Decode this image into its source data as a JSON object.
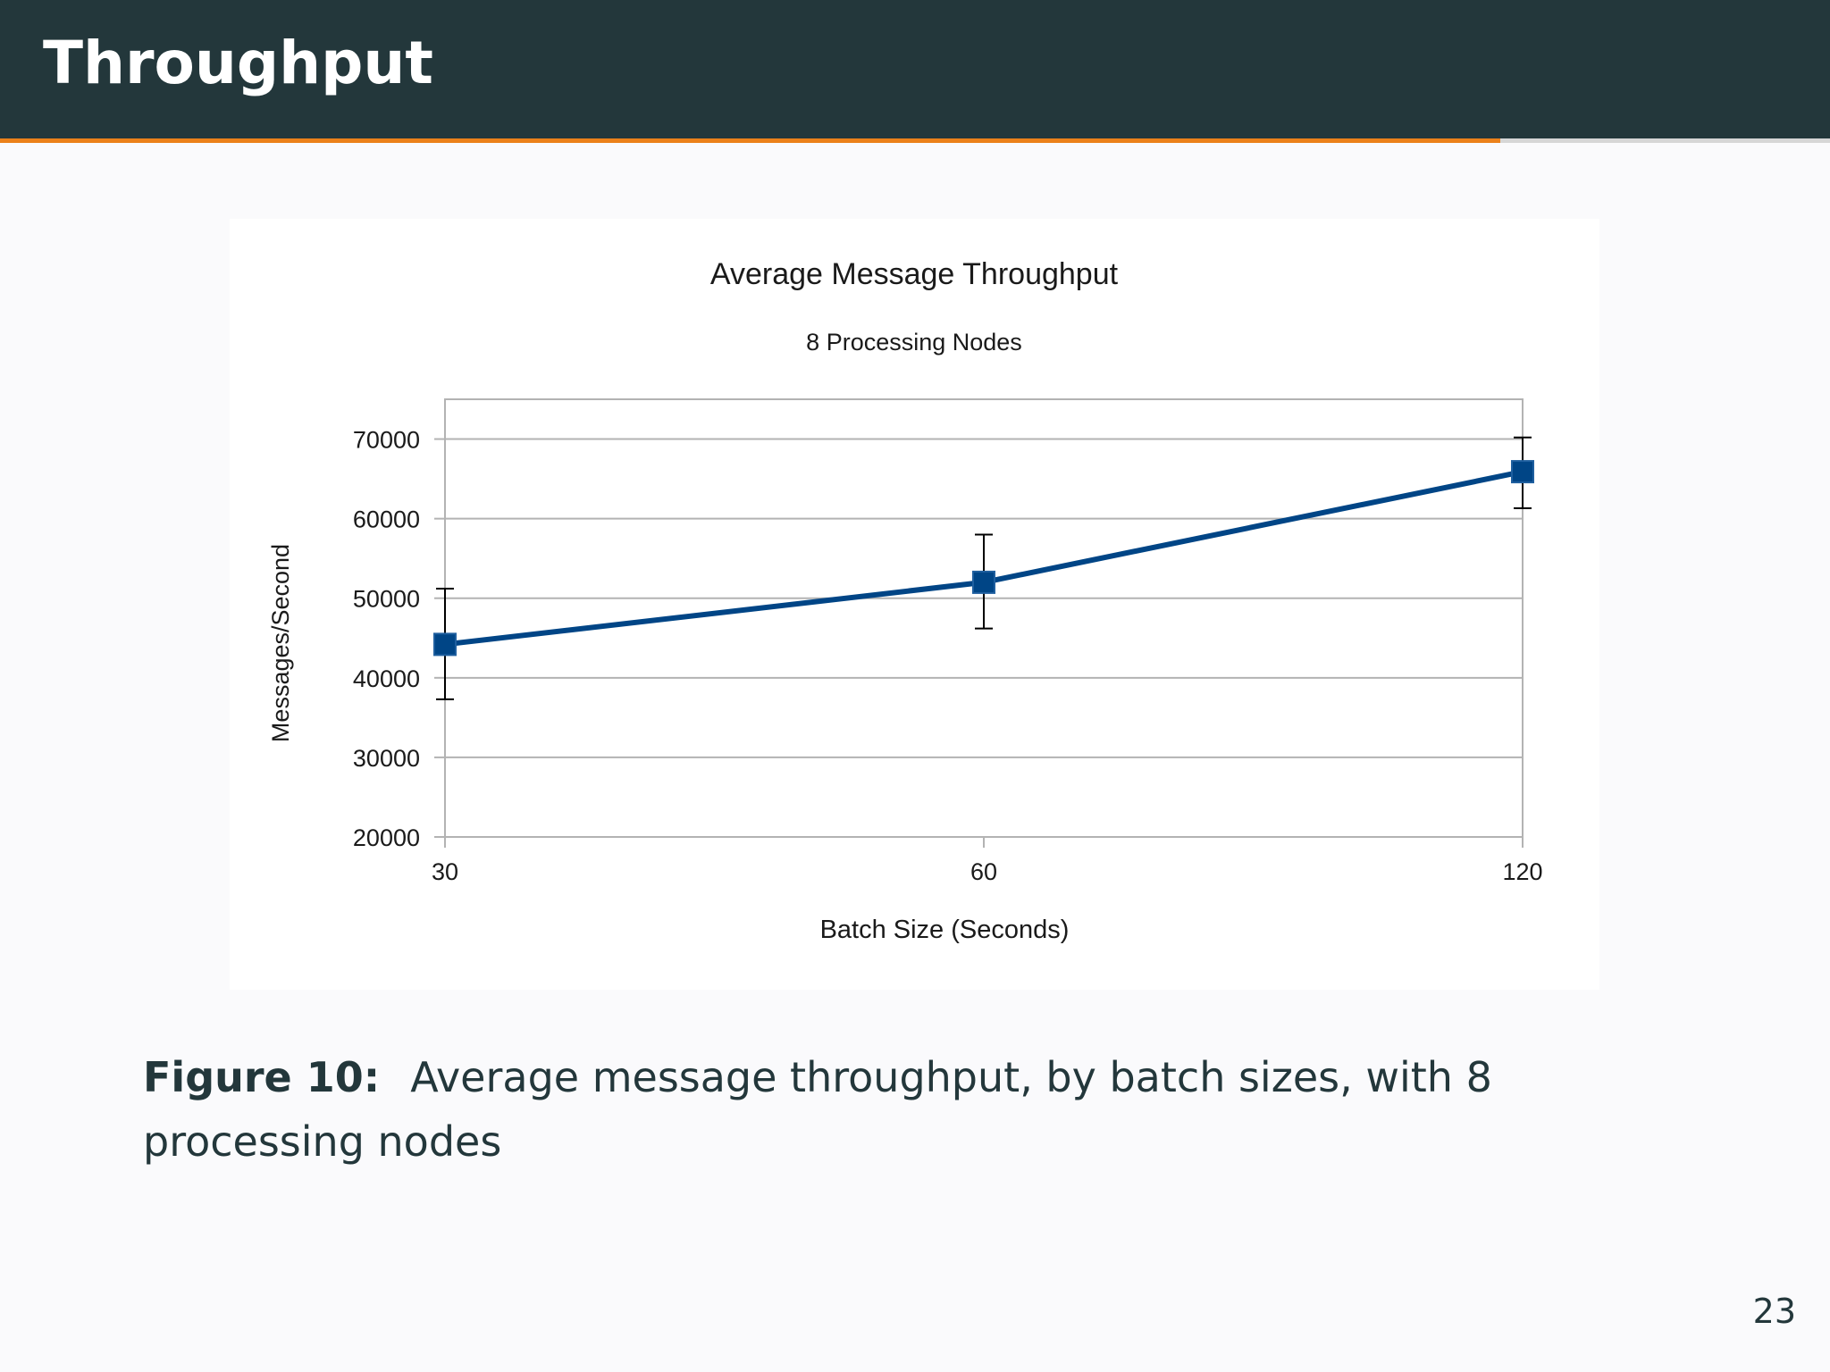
{
  "slide": {
    "title": "Throughput",
    "progress": 0.82,
    "page_number": "23"
  },
  "caption": {
    "label": "Figure 10:",
    "text": "Average message throughput, by batch sizes, with 8 processing nodes"
  },
  "colors": {
    "header_bg": "#23373b",
    "progress": "#eb811b",
    "series": "#004586"
  },
  "chart_data": {
    "type": "line",
    "title": "Average Message Throughput",
    "subtitle": "8 Processing Nodes",
    "xlabel": "Batch Size (Seconds)",
    "ylabel": "Messages/Second",
    "categories": [
      "30",
      "60",
      "120"
    ],
    "y_ticks": [
      "20000",
      "30000",
      "40000",
      "50000",
      "60000",
      "70000"
    ],
    "ylim": [
      20000,
      75000
    ],
    "grid": true,
    "legend": "none",
    "series": [
      {
        "values": [
          44200,
          52000,
          65900
        ],
        "error_low": [
          37300,
          46200,
          61300
        ],
        "error_high": [
          51200,
          58000,
          70200
        ]
      }
    ]
  }
}
